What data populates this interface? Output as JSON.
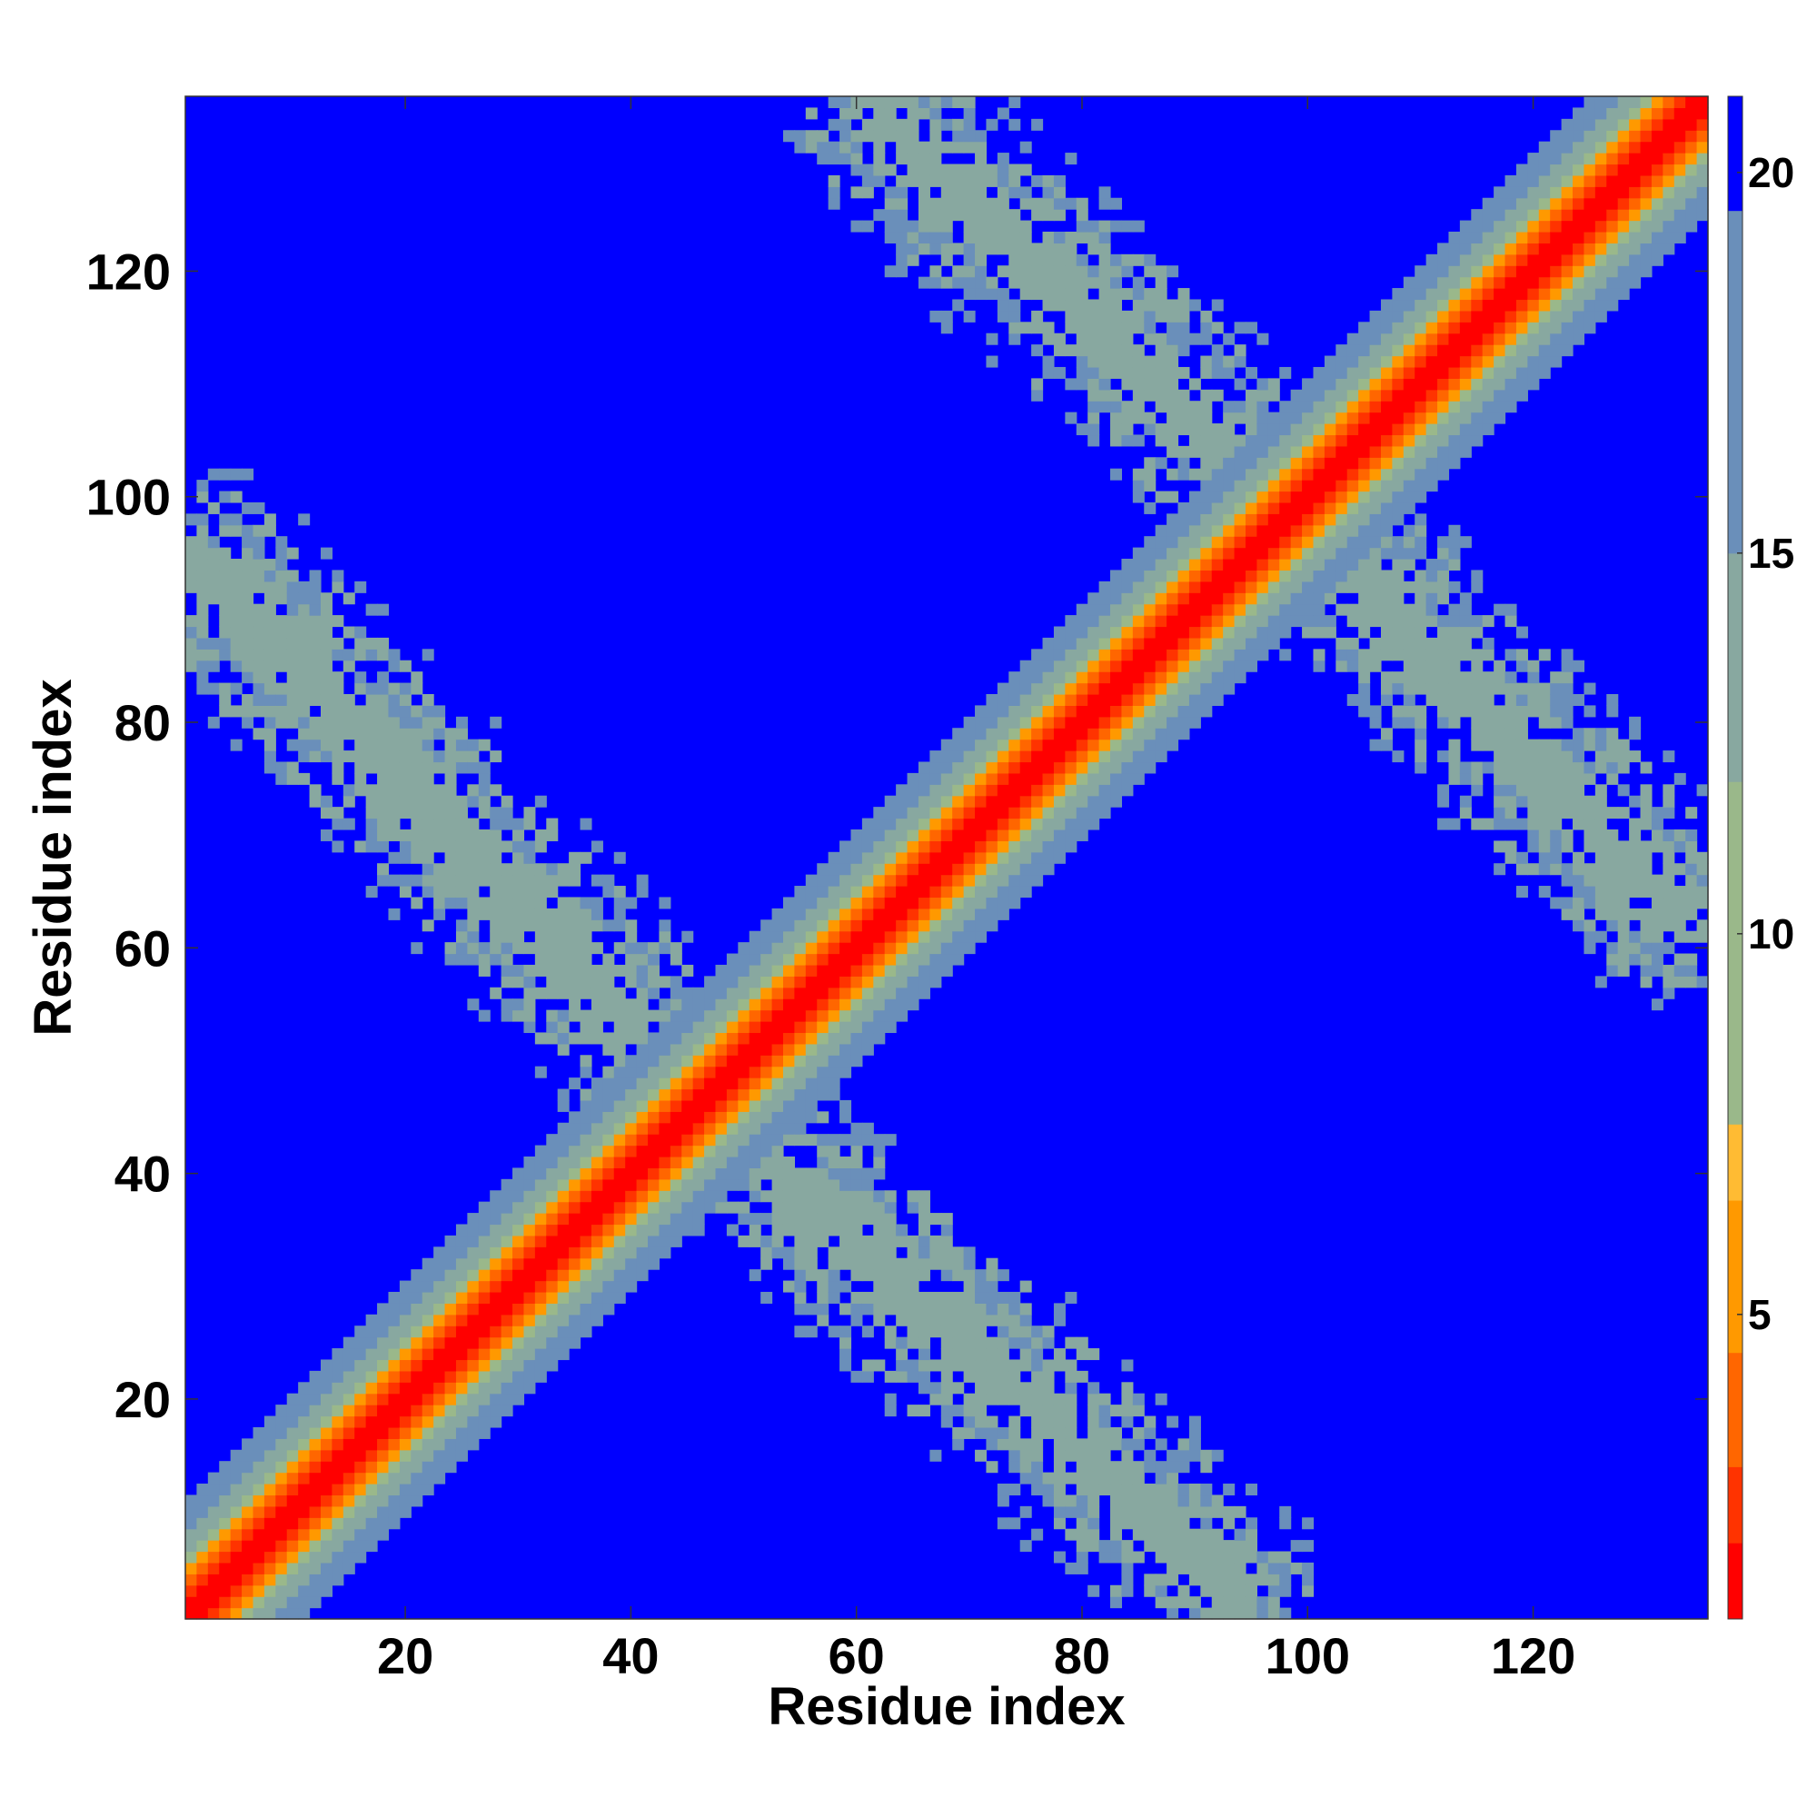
{
  "chart_data": {
    "type": "heatmap",
    "title": "",
    "xlabel": "Residue index",
    "ylabel": "Residue index",
    "n_residues": 135,
    "xlim": [
      1,
      135
    ],
    "ylim": [
      1,
      135
    ],
    "xticks": [
      20,
      40,
      60,
      80,
      100,
      120
    ],
    "yticks": [
      20,
      40,
      60,
      80,
      100,
      120
    ],
    "xtick_labels": [
      "20",
      "40",
      "60",
      "80",
      "100",
      "120"
    ],
    "ytick_labels": [
      "20",
      "40",
      "60",
      "80",
      "100",
      "120"
    ],
    "colorbar": {
      "range": [
        1,
        21
      ],
      "ticks": [
        5,
        10,
        15,
        20
      ],
      "tick_labels": [
        "5",
        "10",
        "15",
        "20"
      ],
      "colors": [
        "#ff0000",
        "#ff3300",
        "#ff6600",
        "#ff9900",
        "#ffbb33",
        "#9ab88a",
        "#88a8a0",
        "#6a8fba",
        "#0000ff"
      ]
    },
    "structure": {
      "diagonal": "distance increases with |i - j|; red near diagonal, blue far away",
      "antiparallel_contacts": [
        {
          "from": [
            3,
            93
          ],
          "to": [
            45,
            48
          ]
        },
        {
          "from": [
            48,
            45
          ],
          "to": [
            93,
            3
          ]
        },
        {
          "from": [
            63,
            133
          ],
          "to": [
            100,
            97
          ]
        },
        {
          "from": [
            97,
            100
          ],
          "to": [
            133,
            63
          ]
        }
      ]
    },
    "grid": false,
    "legend": "colorbar-right"
  }
}
